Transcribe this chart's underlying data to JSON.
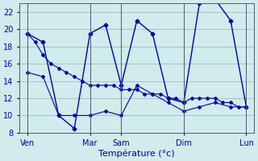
{
  "title": "",
  "xlabel": "Température (°c)",
  "ylabel": "",
  "background_color": "#d0ecec",
  "grid_color": "#aaaaaa",
  "line_color": "#0000aa",
  "ylim": [
    8,
    23
  ],
  "yticks": [
    8,
    10,
    12,
    14,
    16,
    18,
    20,
    22
  ],
  "day_labels": [
    "Ven",
    "Mar",
    "Sam",
    "Dim",
    "Lun"
  ],
  "day_positions": [
    0,
    8,
    12,
    20,
    28
  ],
  "line1_x": [
    0,
    1,
    2,
    3,
    4,
    5,
    6,
    7,
    8,
    9,
    10,
    11,
    12,
    13,
    14,
    15,
    16,
    17,
    18,
    19,
    20,
    21,
    22,
    23,
    24,
    25,
    26,
    27,
    28
  ],
  "line1_y": [
    19.5,
    18.5,
    17.0,
    16.0,
    15.5,
    15.0,
    14.5,
    14.0,
    13.5,
    13.5,
    13.5,
    13.5,
    13.0,
    13.0,
    13.0,
    12.5,
    12.5,
    12.5,
    12.0,
    12.0,
    11.5,
    12.0,
    12.0,
    12.0,
    12.0,
    11.5,
    11.5,
    11.0,
    11.0
  ],
  "line2_x": [
    0,
    2,
    4,
    6,
    8,
    10,
    12,
    14,
    16,
    18,
    20,
    22,
    24,
    26,
    28
  ],
  "line2_y": [
    19.5,
    18.5,
    10.0,
    8.5,
    19.5,
    20.5,
    13.5,
    21.0,
    19.5,
    12.0,
    11.5,
    23.0,
    23.5,
    21.0,
    11.0
  ],
  "line3_x": [
    0,
    2,
    4,
    6,
    8,
    10,
    12,
    14,
    16,
    18,
    20,
    22,
    24,
    26,
    28
  ],
  "line3_y": [
    15.0,
    14.5,
    10.0,
    10.0,
    10.0,
    10.5,
    10.0,
    13.5,
    12.5,
    11.5,
    10.5,
    11.0,
    11.5,
    11.0,
    11.0
  ]
}
